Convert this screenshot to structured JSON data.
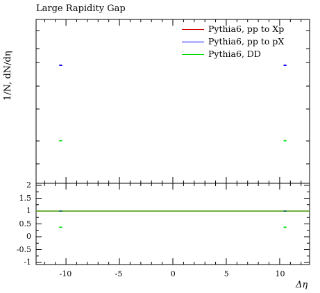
{
  "title": "Large Rapidity Gap",
  "ylabel": "1/N, dN/dη",
  "xlabel": "Δη",
  "legend": [
    {
      "label": "Pythia6, pp to Xp",
      "color": "#d40000"
    },
    {
      "label": "Pythia6, pp to pX",
      "color": "#0000ff"
    },
    {
      "label": "Pythia6, DD",
      "color": "#00dd00"
    }
  ],
  "chart_data": {
    "type": "scatter",
    "title": "Large Rapidity Gap",
    "xlabel": "Δη",
    "ylabel": "1/N, dN/dη",
    "xlim": [
      -12.8,
      12.8
    ],
    "x_ticks": [
      -10,
      -5,
      0,
      5,
      10
    ],
    "series": [
      {
        "name": "Pythia6, pp to Xp",
        "color": "#d40000",
        "x": [
          -10.5,
          10.5
        ],
        "y": [
          0.72,
          0.72
        ]
      },
      {
        "name": "Pythia6, pp to pX",
        "color": "#0000ff",
        "x": [
          -10.5,
          10.5
        ],
        "y": [
          0.72,
          0.72
        ]
      },
      {
        "name": "Pythia6, DD",
        "color": "#00dd00",
        "x": [
          -10.5,
          10.5
        ],
        "y": [
          0.26,
          0.26
        ]
      }
    ],
    "ratio": {
      "ylim": [
        -1,
        2
      ],
      "y_ticks": [
        "2",
        "1.5",
        "1",
        "0.5",
        "0",
        "-0.5",
        "-1"
      ],
      "y_tick_values": [
        2,
        1.5,
        1,
        0.5,
        0,
        -0.5,
        -1
      ],
      "reference": 1,
      "series": [
        {
          "name": "Pythia6, pp to Xp",
          "color": "#d40000",
          "x": [
            -10.5,
            10.5
          ],
          "y": [
            1,
            1
          ]
        },
        {
          "name": "Pythia6, pp to pX",
          "color": "#0000ff",
          "x": [
            -10.5,
            10.5
          ],
          "y": [
            1,
            1
          ]
        },
        {
          "name": "Pythia6, DD",
          "color": "#00dd00",
          "x": [
            -10.5,
            10.5
          ],
          "y": [
            0.37,
            0.37
          ]
        }
      ]
    }
  }
}
